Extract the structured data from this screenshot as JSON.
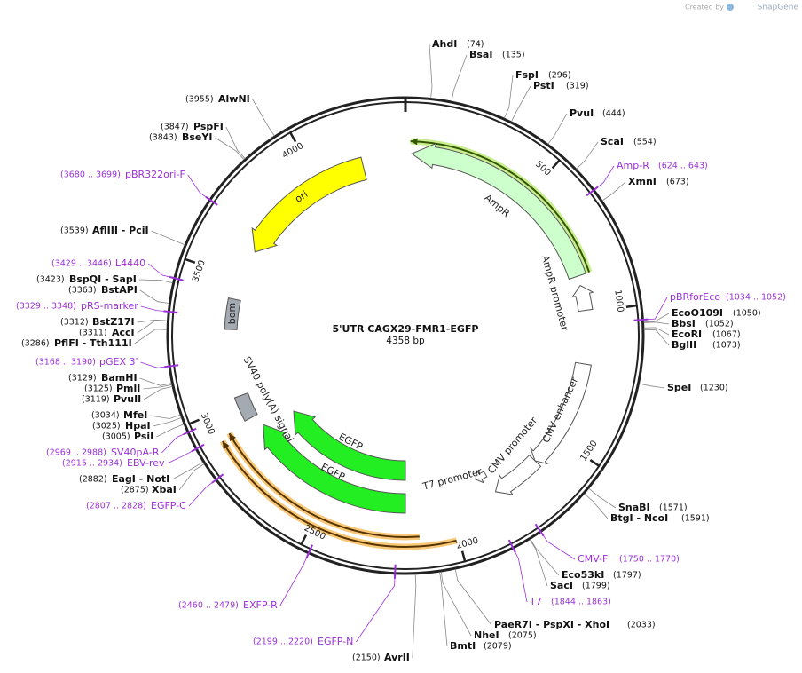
{
  "watermark": {
    "prefix": "Created by",
    "brand": "SnapGene"
  },
  "map": {
    "title": "5'UTR CAGX29-FMR1-EGFP",
    "length": "4358 bp",
    "ticks": [
      "500",
      "1000",
      "1500",
      "2000",
      "2500",
      "3000",
      "3500",
      "4000"
    ]
  },
  "features": [
    {
      "label": "AmpR"
    },
    {
      "label": "AmpR promoter"
    },
    {
      "label": "ori"
    },
    {
      "label": "bom"
    },
    {
      "label": "CMV enhancer"
    },
    {
      "label": "CMV promoter"
    },
    {
      "label": "T7 promoter"
    },
    {
      "label": "EGFP"
    },
    {
      "label": "EGFP"
    },
    {
      "label": "SV40 poly(A) signal"
    }
  ],
  "enzymes": [
    {
      "name": "AhdI",
      "position": "(74)"
    },
    {
      "name": "BsaI",
      "position": "(135)"
    },
    {
      "name": "FspI",
      "position": "(296)"
    },
    {
      "name": "PstI",
      "position": "(319)"
    },
    {
      "name": "PvuI",
      "position": "(444)"
    },
    {
      "name": "ScaI",
      "position": "(554)"
    },
    {
      "name": "XmnI",
      "position": "(673)"
    },
    {
      "name": "EcoO109I",
      "position": "(1050)"
    },
    {
      "name": "BbsI",
      "position": "(1052)"
    },
    {
      "name": "EcoRI",
      "position": "(1067)"
    },
    {
      "name": "BglII",
      "position": "(1073)"
    },
    {
      "name": "SpeI",
      "position": "(1230)"
    },
    {
      "name": "SnaBI",
      "position": "(1571)"
    },
    {
      "name": "BtgI  - NcoI",
      "position": "(1591)"
    },
    {
      "name": "Eco53kI",
      "position": "(1797)"
    },
    {
      "name": "SacI",
      "position": "(1799)"
    },
    {
      "name": "PaeR7I  - PspXI  - XhoI",
      "position": "(2033)"
    },
    {
      "name": "NheI",
      "position": "(2075)"
    },
    {
      "name": "BmtI",
      "position": "(2079)"
    },
    {
      "name": "AvrII",
      "position": "(2150)"
    },
    {
      "name": "XbaI",
      "position": "(2875)"
    },
    {
      "name": "EagI  - NotI",
      "position": "(2882)"
    },
    {
      "name": "PsiI",
      "position": "(3005)"
    },
    {
      "name": "HpaI",
      "position": "(3025)"
    },
    {
      "name": "MfeI",
      "position": "(3034)"
    },
    {
      "name": "PvuII",
      "position": "(3119)"
    },
    {
      "name": "PmlI",
      "position": "(3125)"
    },
    {
      "name": "BamHI",
      "position": "(3129)"
    },
    {
      "name": "PflFI  - Tth111I",
      "position": "(3286)"
    },
    {
      "name": "AccI",
      "position": "(3311)"
    },
    {
      "name": "BstZ17I",
      "position": "(3312)"
    },
    {
      "name": "BstAPI",
      "position": "(3363)"
    },
    {
      "name": "BspQI  - SapI",
      "position": "(3423)"
    },
    {
      "name": "AflIII  - PciI",
      "position": "(3539)"
    },
    {
      "name": "BseYI",
      "position": "(3843)"
    },
    {
      "name": "PspFI",
      "position": "(3847)"
    },
    {
      "name": "AlwNI",
      "position": "(3955)"
    }
  ],
  "primers": [
    {
      "name": "Amp-R",
      "range": "(624 .. 643)"
    },
    {
      "name": "pBRforEco",
      "range": "(1034 .. 1052)"
    },
    {
      "name": "CMV-F",
      "range": "(1750 .. 1770)"
    },
    {
      "name": "T7",
      "range": "(1844 .. 1863)"
    },
    {
      "name": "EGFP-N",
      "range": "(2199 .. 2220)"
    },
    {
      "name": "EXFP-R",
      "range": "(2460 .. 2479)"
    },
    {
      "name": "EGFP-C",
      "range": "(2807 .. 2828)"
    },
    {
      "name": "EBV-rev",
      "range": "(2915 .. 2934)"
    },
    {
      "name": "SV40pA-R",
      "range": "(2969 .. 2988)"
    },
    {
      "name": "pGEX 3'",
      "range": "(3168 .. 3190)"
    },
    {
      "name": "pRS-marker",
      "range": "(3329 .. 3348)"
    },
    {
      "name": "L4440",
      "range": "(3429 .. 3446)"
    },
    {
      "name": "pBR322ori-F",
      "range": "(3680 .. 3699)"
    }
  ]
}
